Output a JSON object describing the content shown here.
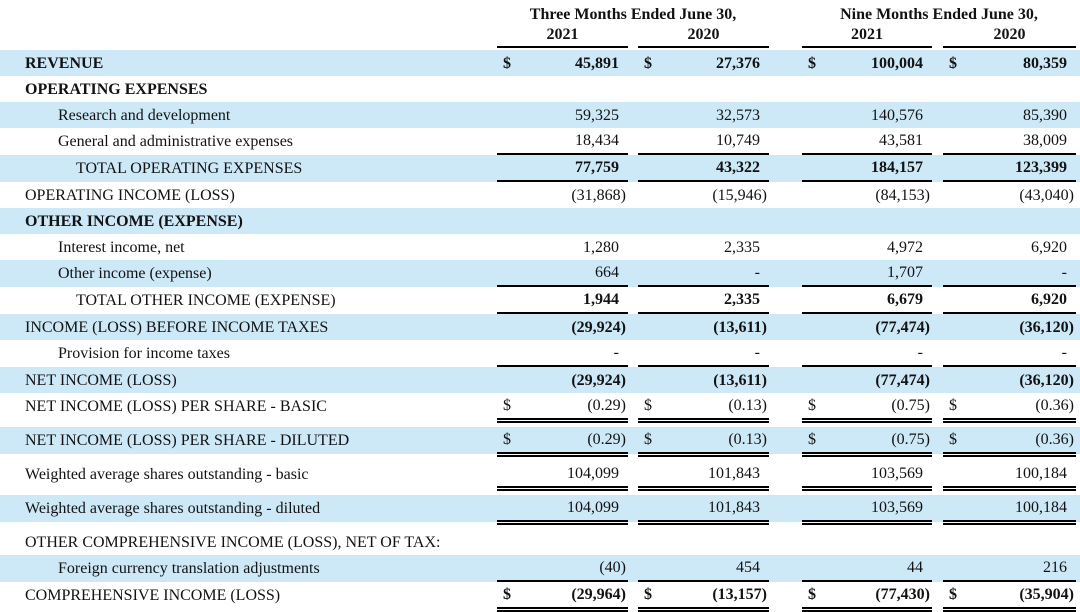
{
  "colors": {
    "row_highlight": "#cde8f7",
    "rule": "#000000",
    "text": "#121212"
  },
  "table": {
    "currency_symbol": "$",
    "col_groups": [
      {
        "title": "Three Months Ended June 30,",
        "years": [
          "2021",
          "2020"
        ]
      },
      {
        "title": "Nine Months Ended June 30,",
        "years": [
          "2021",
          "2020"
        ]
      }
    ],
    "rows": [
      {
        "label": "REVENUE",
        "indent": 0,
        "bg": "blue",
        "label_bold": true,
        "values_bold": true,
        "dollar": true,
        "underline": "none",
        "values": [
          "45,891",
          "27,376",
          "100,004",
          "80,359"
        ]
      },
      {
        "label": "OPERATING EXPENSES",
        "indent": 0,
        "bg": "white",
        "label_bold": true,
        "values_bold": false,
        "dollar": false,
        "underline": "none",
        "values": null
      },
      {
        "label": "Research and development",
        "indent": 1,
        "bg": "blue",
        "label_bold": false,
        "values_bold": false,
        "dollar": false,
        "underline": "none",
        "values": [
          "59,325",
          "32,573",
          "140,576",
          "85,390"
        ]
      },
      {
        "label": "General and administrative expenses",
        "indent": 1,
        "bg": "white",
        "label_bold": false,
        "values_bold": false,
        "dollar": false,
        "underline": "single",
        "values": [
          "18,434",
          "10,749",
          "43,581",
          "38,009"
        ]
      },
      {
        "label": "TOTAL OPERATING EXPENSES",
        "indent": 2,
        "bg": "blue",
        "label_bold": false,
        "values_bold": true,
        "dollar": false,
        "underline": "single",
        "values": [
          "77,759",
          "43,322",
          "184,157",
          "123,399"
        ]
      },
      {
        "label": "OPERATING INCOME (LOSS)",
        "indent": 0,
        "bg": "white",
        "label_bold": false,
        "values_bold": false,
        "dollar": false,
        "underline": "none",
        "values": [
          "(31,868)",
          "(15,946)",
          "(84,153)",
          "(43,040)"
        ]
      },
      {
        "label": "OTHER INCOME (EXPENSE)",
        "indent": 0,
        "bg": "blue",
        "label_bold": true,
        "values_bold": false,
        "dollar": false,
        "underline": "none",
        "values": null
      },
      {
        "label": "Interest income, net",
        "indent": 1,
        "bg": "white",
        "label_bold": false,
        "values_bold": false,
        "dollar": false,
        "underline": "none",
        "values": [
          "1,280",
          "2,335",
          "4,972",
          "6,920"
        ]
      },
      {
        "label": "Other income (expense)",
        "indent": 1,
        "bg": "blue",
        "label_bold": false,
        "values_bold": false,
        "dollar": false,
        "underline": "single",
        "values": [
          "664",
          "-",
          "1,707",
          "-"
        ]
      },
      {
        "label": "TOTAL OTHER INCOME (EXPENSE)",
        "indent": 2,
        "bg": "white",
        "label_bold": false,
        "values_bold": true,
        "dollar": false,
        "underline": "single",
        "values": [
          "1,944",
          "2,335",
          "6,679",
          "6,920"
        ]
      },
      {
        "label": "INCOME (LOSS) BEFORE INCOME TAXES",
        "indent": 0,
        "bg": "blue",
        "label_bold": false,
        "values_bold": true,
        "dollar": false,
        "underline": "none",
        "values": [
          "(29,924)",
          "(13,611)",
          "(77,474)",
          "(36,120)"
        ]
      },
      {
        "label": "Provision for income taxes",
        "indent": 1,
        "bg": "white",
        "label_bold": false,
        "values_bold": false,
        "dollar": false,
        "underline": "single",
        "values": [
          "-",
          "-",
          "-",
          "-"
        ]
      },
      {
        "label": "NET INCOME (LOSS)",
        "indent": 0,
        "bg": "blue",
        "label_bold": false,
        "values_bold": true,
        "dollar": false,
        "underline": "none",
        "values": [
          "(29,924)",
          "(13,611)",
          "(77,474)",
          "(36,120)"
        ]
      },
      {
        "label": "NET INCOME (LOSS) PER SHARE - BASIC",
        "indent": 0,
        "bg": "white",
        "label_bold": false,
        "values_bold": false,
        "dollar": true,
        "underline": "double",
        "values": [
          "(0.29)",
          "(0.13)",
          "(0.75)",
          "(0.36)"
        ]
      },
      {
        "label": "NET INCOME (LOSS) PER SHARE - DILUTED",
        "indent": 0,
        "bg": "blue",
        "label_bold": false,
        "values_bold": false,
        "dollar": true,
        "underline": "double",
        "values": [
          "(0.29)",
          "(0.13)",
          "(0.75)",
          "(0.36)"
        ]
      },
      {
        "label": "Weighted average shares outstanding - basic",
        "indent": 0,
        "bg": "white",
        "label_bold": false,
        "values_bold": false,
        "dollar": false,
        "underline": "double",
        "values": [
          "104,099",
          "101,843",
          "103,569",
          "100,184"
        ]
      },
      {
        "label": "Weighted average shares outstanding - diluted",
        "indent": 0,
        "bg": "blue",
        "label_bold": false,
        "values_bold": false,
        "dollar": false,
        "underline": "double",
        "values": [
          "104,099",
          "101,843",
          "103,569",
          "100,184"
        ]
      },
      {
        "label": "OTHER COMPREHENSIVE INCOME (LOSS), NET OF TAX:",
        "indent": 0,
        "bg": "white",
        "label_bold": false,
        "values_bold": false,
        "dollar": false,
        "underline": "none",
        "values": null
      },
      {
        "label": "Foreign currency translation adjustments",
        "indent": 1,
        "bg": "blue",
        "label_bold": false,
        "values_bold": false,
        "dollar": false,
        "underline": "single",
        "values": [
          "(40)",
          "454",
          "44",
          "216"
        ]
      },
      {
        "label": "COMPREHENSIVE INCOME (LOSS)",
        "indent": 0,
        "bg": "white",
        "label_bold": false,
        "values_bold": true,
        "dollar": true,
        "underline": "double",
        "values": [
          "(29,964)",
          "(13,157)",
          "(77,430)",
          "(35,904)"
        ]
      }
    ]
  }
}
